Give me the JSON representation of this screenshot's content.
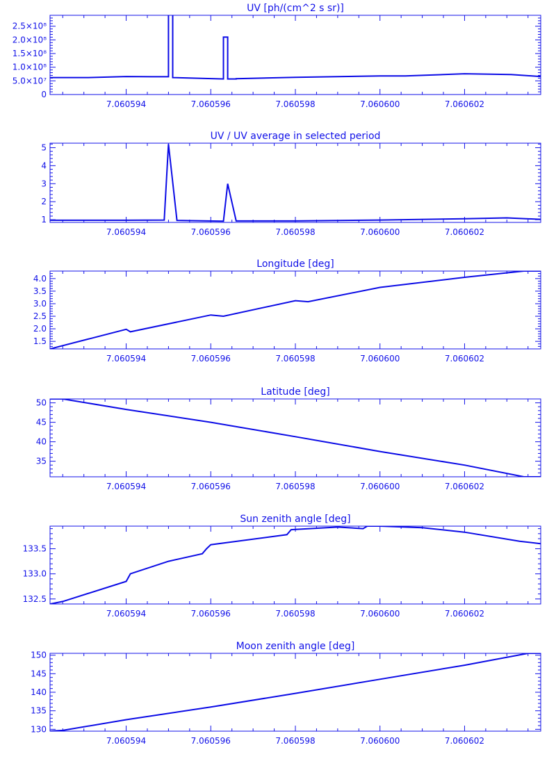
{
  "colors": {
    "plot": "#1010e8",
    "background": "#ffffff"
  },
  "chart_data": [
    {
      "type": "line",
      "title": "UV [ph/(cm^2 s sr)]",
      "xlim": [
        7.0605922,
        7.0606038
      ],
      "ylim": [
        0,
        290000000.0
      ],
      "xticks": [
        "7.060594",
        "7.060596",
        "7.060598",
        "7.060600",
        "7.060602"
      ],
      "yticks": [
        {
          "value": 0,
          "label": "0"
        },
        {
          "value": 50000000.0,
          "label": "5.0×10⁷"
        },
        {
          "value": 100000000.0,
          "label": "1.0×10⁸"
        },
        {
          "value": 150000000.0,
          "label": "1.5×10⁸"
        },
        {
          "value": 200000000.0,
          "label": "2.0×10⁸"
        },
        {
          "value": 250000000.0,
          "label": "2.5×10⁸"
        }
      ],
      "x": [
        7.0605922,
        7.0605931,
        7.060594,
        7.0605946,
        7.060595,
        7.060595,
        7.0605951,
        7.0605951,
        7.0605963,
        7.0605963,
        7.0605964,
        7.0605964,
        7.0605966,
        7.0605966,
        7.060598,
        7.0606,
        7.0606006,
        7.060602,
        7.0606031,
        7.0606038
      ],
      "y": [
        62000000.0,
        62000000.0,
        66000000.0,
        65000000.0,
        65000000.0,
        300000000.0,
        300000000.0,
        62000000.0,
        57000000.0,
        210000000.0,
        210000000.0,
        57000000.0,
        57000000.0,
        58000000.0,
        63000000.0,
        68000000.0,
        68000000.0,
        76000000.0,
        73000000.0,
        66000000.0
      ]
    },
    {
      "type": "line",
      "title": "UV / UV average in selected period",
      "xlim": [
        7.0605922,
        7.0606038
      ],
      "ylim": [
        0.85,
        5.25
      ],
      "xticks": [
        "7.060594",
        "7.060596",
        "7.060598",
        "7.060600",
        "7.060602"
      ],
      "yticks": [
        {
          "value": 1,
          "label": "1"
        },
        {
          "value": 2,
          "label": "2"
        },
        {
          "value": 3,
          "label": "3"
        },
        {
          "value": 4,
          "label": "4"
        },
        {
          "value": 5,
          "label": "5"
        }
      ],
      "x": [
        7.0605922,
        7.060594,
        7.0605949,
        7.060595,
        7.0605952,
        7.0605963,
        7.0605964,
        7.0605966,
        7.060598,
        7.0606,
        7.060602,
        7.060603,
        7.0606038
      ],
      "y": [
        0.97,
        0.97,
        0.98,
        5.2,
        0.96,
        0.92,
        3.0,
        0.93,
        0.93,
        0.98,
        1.05,
        1.1,
        1.02
      ]
    },
    {
      "type": "line",
      "title": "Longitude [deg]",
      "xlim": [
        7.0605922,
        7.0606038
      ],
      "ylim": [
        1.2,
        4.3
      ],
      "xticks": [
        "7.060594",
        "7.060596",
        "7.060598",
        "7.060600",
        "7.060602"
      ],
      "yticks": [
        {
          "value": 1.5,
          "label": "1.5"
        },
        {
          "value": 2.0,
          "label": "2.0"
        },
        {
          "value": 2.5,
          "label": "2.5"
        },
        {
          "value": 3.0,
          "label": "3.0"
        },
        {
          "value": 3.5,
          "label": "3.5"
        },
        {
          "value": 4.0,
          "label": "4.0"
        }
      ],
      "x": [
        7.0605922,
        7.060594,
        7.0605941,
        7.060596,
        7.0605963,
        7.060598,
        7.0605983,
        7.0606,
        7.060602,
        7.0606034,
        7.0606038
      ],
      "y": [
        1.2,
        1.98,
        1.88,
        2.55,
        2.5,
        3.12,
        3.08,
        3.65,
        4.05,
        4.3,
        4.3
      ]
    },
    {
      "type": "line",
      "title": "Latitude [deg]",
      "xlim": [
        7.0605922,
        7.0606038
      ],
      "ylim": [
        31,
        51
      ],
      "xticks": [
        "7.060594",
        "7.060596",
        "7.060598",
        "7.060600",
        "7.060602"
      ],
      "yticks": [
        {
          "value": 35,
          "label": "35"
        },
        {
          "value": 40,
          "label": "40"
        },
        {
          "value": 45,
          "label": "45"
        },
        {
          "value": 50,
          "label": "50"
        }
      ],
      "x": [
        7.0605922,
        7.0605925,
        7.060594,
        7.060596,
        7.060598,
        7.0606,
        7.060602,
        7.0606034,
        7.0606038
      ],
      "y": [
        51,
        51,
        48.3,
        45.0,
        41.3,
        37.5,
        34.0,
        31,
        31
      ]
    },
    {
      "type": "line",
      "title": "Sun zenith angle [deg]",
      "xlim": [
        7.0605922,
        7.0606038
      ],
      "ylim": [
        132.4,
        133.95
      ],
      "xticks": [
        "7.060594",
        "7.060596",
        "7.060598",
        "7.060600",
        "7.060602"
      ],
      "yticks": [
        {
          "value": 132.5,
          "label": "132.5"
        },
        {
          "value": 133.0,
          "label": "133.0"
        },
        {
          "value": 133.5,
          "label": "133.5"
        }
      ],
      "x": [
        7.0605922,
        7.0605925,
        7.060594,
        7.0605941,
        7.060595,
        7.0605958,
        7.0605959,
        7.060596,
        7.0605978,
        7.0605979,
        7.060599,
        7.0605996,
        7.0605997,
        7.0606,
        7.060601,
        7.060602,
        7.0606033,
        7.0606038
      ],
      "y": [
        132.4,
        132.45,
        132.85,
        133.0,
        133.25,
        133.4,
        133.5,
        133.58,
        133.78,
        133.88,
        133.93,
        133.9,
        133.95,
        133.95,
        133.92,
        133.83,
        133.65,
        133.6
      ]
    },
    {
      "type": "line",
      "title": "Moon zenith angle [deg]",
      "xlim": [
        7.0605922,
        7.0606038
      ],
      "ylim": [
        129.5,
        150.5
      ],
      "xticks": [
        "7.060594",
        "7.060596",
        "7.060598",
        "7.060600",
        "7.060602"
      ],
      "yticks": [
        {
          "value": 130,
          "label": "130"
        },
        {
          "value": 135,
          "label": "135"
        },
        {
          "value": 140,
          "label": "140"
        },
        {
          "value": 145,
          "label": "145"
        },
        {
          "value": 150,
          "label": "150"
        }
      ],
      "x": [
        7.0605922,
        7.0605925,
        7.060594,
        7.060596,
        7.060598,
        7.0606,
        7.060602,
        7.0606035,
        7.0606038
      ],
      "y": [
        129.5,
        129.7,
        132.6,
        136.0,
        139.7,
        143.5,
        147.3,
        150.5,
        150.5
      ]
    }
  ]
}
